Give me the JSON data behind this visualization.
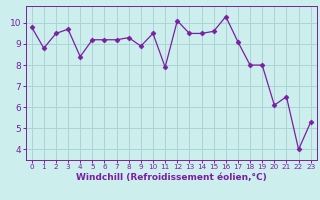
{
  "x": [
    0,
    1,
    2,
    3,
    4,
    5,
    6,
    7,
    8,
    9,
    10,
    11,
    12,
    13,
    14,
    15,
    16,
    17,
    18,
    19,
    20,
    21,
    22,
    23
  ],
  "y": [
    9.8,
    8.8,
    9.5,
    9.7,
    8.4,
    9.2,
    9.2,
    9.2,
    9.3,
    8.9,
    9.5,
    7.9,
    10.1,
    9.5,
    9.5,
    9.6,
    10.3,
    9.1,
    8.0,
    8.0,
    6.1,
    6.5,
    4.0,
    5.3
  ],
  "line_color": "#7b1fa2",
  "marker": "D",
  "marker_size": 2.5,
  "bg_color": "#cceeed",
  "grid_color": "#aad4d4",
  "xlabel": "Windchill (Refroidissement éolien,°C)",
  "xlabel_color": "#7b1fa2",
  "ylim": [
    3.5,
    10.8
  ],
  "xlim": [
    -0.5,
    23.5
  ],
  "yticks": [
    4,
    5,
    6,
    7,
    8,
    9,
    10
  ],
  "xticks": [
    0,
    1,
    2,
    3,
    4,
    5,
    6,
    7,
    8,
    9,
    10,
    11,
    12,
    13,
    14,
    15,
    16,
    17,
    18,
    19,
    20,
    21,
    22,
    23
  ],
  "tick_label_color": "#7b1fa2",
  "spine_color": "#7b1fa2",
  "tick_fontsize": 5.2,
  "ytick_fontsize": 6.5,
  "xlabel_fontsize": 6.5
}
